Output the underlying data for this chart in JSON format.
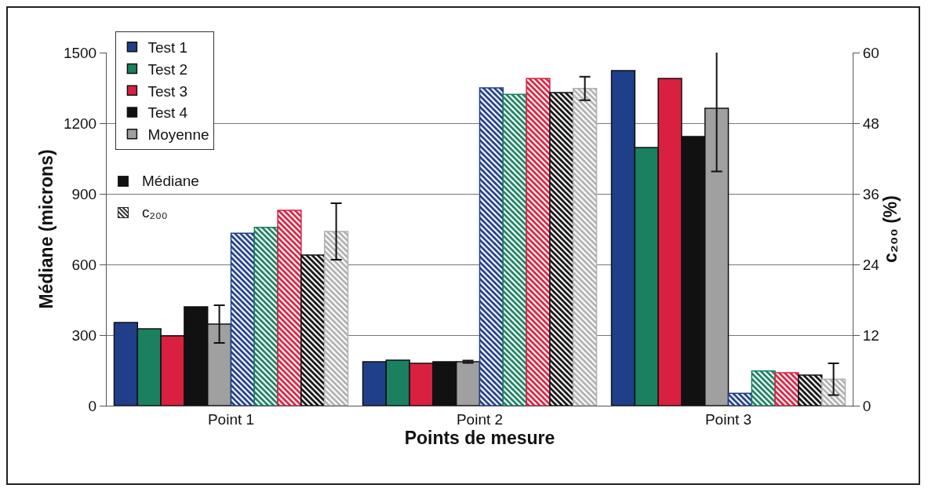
{
  "chart_data": {
    "type": "bar",
    "xlabel": "Points de mesure",
    "ylabel": "Médiane (microns)",
    "y2label": "c₂₀₀ (%)",
    "categories": [
      "Point 1",
      "Point 2",
      "Point 3"
    ],
    "series": [
      {
        "name": "Test 1",
        "color": "#1f3f8a",
        "values": [
          353,
          187,
          1423
        ]
      },
      {
        "name": "Test 2",
        "color": "#1a8060",
        "values": [
          327,
          193,
          1097
        ]
      },
      {
        "name": "Test 3",
        "color": "#d92040",
        "values": [
          297,
          180,
          1390
        ]
      },
      {
        "name": "Test 4",
        "color": "#111111",
        "values": [
          420,
          187,
          1143
        ]
      },
      {
        "name": "Moyenne",
        "color": "#a0a0a0",
        "values": [
          347,
          187,
          1263
        ],
        "errors": [
          80,
          5,
          268
        ]
      },
      {
        "color": "#1f3f8a",
        "axis": "y2",
        "values": [
          29.3,
          54.0,
          2.1
        ]
      },
      {
        "color": "#1a8060",
        "axis": "y2",
        "values": [
          30.3,
          52.9,
          5.9
        ]
      },
      {
        "color": "#d92040",
        "axis": "y2",
        "values": [
          33.2,
          55.6,
          5.6
        ]
      },
      {
        "color": "#111111",
        "axis": "y2",
        "values": [
          25.6,
          53.2,
          5.2
        ]
      },
      {
        "color": "#b0b0b0",
        "axis": "y2",
        "values": [
          29.6,
          53.9,
          4.5
        ],
        "errors": [
          4.8,
          2,
          2.7
        ]
      }
    ],
    "ylim": [
      0,
      1500
    ],
    "yticks": [
      0,
      300,
      600,
      900,
      1200,
      1500
    ],
    "y2lim": [
      0,
      60
    ],
    "y2ticks": [
      0,
      12,
      24,
      36,
      48,
      60
    ],
    "grid": "y",
    "legend": "top left",
    "annotations": [
      "Médiane",
      "c₂₀₀"
    ]
  }
}
